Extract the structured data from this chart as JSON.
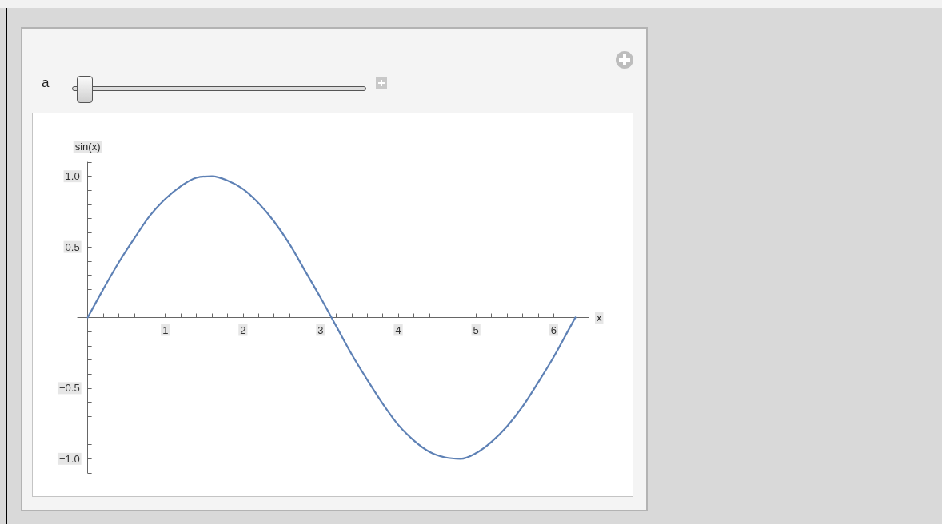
{
  "chart_data": {
    "type": "line",
    "xlabel": "x",
    "ylabel": "sin(x)",
    "annotations": [
      "a"
    ],
    "x": [
      0,
      0.2,
      0.4,
      0.6,
      0.8,
      1.0,
      1.2,
      1.4,
      1.6,
      1.8,
      2.0,
      2.2,
      2.4,
      2.6,
      2.8,
      3.0,
      3.2,
      3.4,
      3.6,
      3.8,
      4.0,
      4.2,
      4.4,
      4.6,
      4.8,
      5.0,
      5.2,
      5.4,
      5.6,
      5.8,
      6.0,
      6.2,
      6.28
    ],
    "series": [
      {
        "color": "#5e81b5",
        "values": [
          0,
          0.2,
          0.39,
          0.56,
          0.72,
          0.84,
          0.93,
          0.99,
          1.0,
          0.97,
          0.91,
          0.81,
          0.68,
          0.52,
          0.33,
          0.14,
          -0.06,
          -0.26,
          -0.44,
          -0.61,
          -0.76,
          -0.87,
          -0.95,
          -0.99,
          -1.0,
          -0.96,
          -0.88,
          -0.77,
          -0.63,
          -0.46,
          -0.28,
          -0.08,
          0
        ]
      }
    ],
    "xlim": [
      -0.13,
      6.45
    ],
    "ylim": [
      -1.1,
      1.1
    ],
    "xticks": [
      {
        "value": 0.2,
        "label": null
      },
      {
        "value": 0.4,
        "label": null
      },
      {
        "value": 0.6,
        "label": null
      },
      {
        "value": 0.8,
        "label": null
      },
      1,
      {
        "value": 1.2,
        "label": null
      },
      {
        "value": 1.4,
        "label": null
      },
      {
        "value": 1.6,
        "label": null
      },
      {
        "value": 1.8,
        "label": null
      },
      2,
      {
        "value": 2.2,
        "label": null
      },
      {
        "value": 2.4,
        "label": null
      },
      {
        "value": 2.6,
        "label": null
      },
      {
        "value": 2.8,
        "label": null
      },
      3,
      {
        "value": 3.2,
        "label": null
      },
      {
        "value": 3.4,
        "label": null
      },
      {
        "value": 3.6,
        "label": null
      },
      {
        "value": 3.8,
        "label": null
      },
      4,
      {
        "value": 4.2,
        "label": null
      },
      {
        "value": 4.4,
        "label": null
      },
      {
        "value": 4.6,
        "label": null
      },
      {
        "value": 4.8,
        "label": null
      },
      5,
      {
        "value": 5.2,
        "label": null
      },
      {
        "value": 5.4,
        "label": null
      },
      {
        "value": 5.6,
        "label": null
      },
      {
        "value": 5.8,
        "label": null
      },
      6,
      {
        "value": 6.2,
        "label": null
      },
      {
        "value": 6.4,
        "label": null
      }
    ],
    "yticks": [
      {
        "value": -1.1,
        "label": null
      },
      {
        "value": -1.0,
        "label": "−1.0"
      },
      {
        "value": -0.9,
        "label": null
      },
      {
        "value": -0.8,
        "label": null
      },
      {
        "value": -0.7,
        "label": null
      },
      {
        "value": -0.6,
        "label": null
      },
      {
        "value": -0.5,
        "label": "−0.5"
      },
      {
        "value": -0.4,
        "label": null
      },
      {
        "value": -0.3,
        "label": null
      },
      {
        "value": -0.2,
        "label": null
      },
      {
        "value": -0.1,
        "label": null
      },
      {
        "value": 0.1,
        "label": null
      },
      {
        "value": 0.2,
        "label": null
      },
      {
        "value": 0.3,
        "label": null
      },
      {
        "value": 0.4,
        "label": null
      },
      {
        "value": 0.5,
        "label": "0.5"
      },
      {
        "value": 0.6,
        "label": null
      },
      {
        "value": 0.7,
        "label": null
      },
      {
        "value": 0.8,
        "label": null
      },
      {
        "value": 0.9,
        "label": null
      },
      {
        "value": 1.0,
        "label": "1.0"
      },
      {
        "value": 1.1,
        "label": null
      }
    ],
    "grid": false,
    "marker": "none",
    "line_style": "solid"
  }
}
